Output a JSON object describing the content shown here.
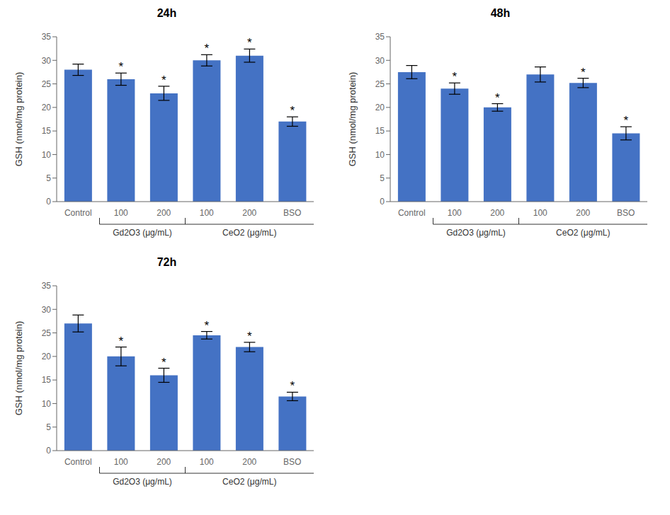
{
  "chart_data": [
    {
      "type": "bar",
      "title": "24h",
      "categories": [
        "Control",
        "100",
        "200",
        "100",
        "200",
        "BSO"
      ],
      "groups": [
        null,
        "Gd2O3 (μg/mL)",
        "Gd2O3 (μg/mL)",
        "CeO2 (μg/mL)",
        "CeO2 (μg/mL)",
        "CeO2 (μg/mL)"
      ],
      "values": [
        28.0,
        26.0,
        23.0,
        30.0,
        31.0,
        17.0
      ],
      "errors": [
        1.2,
        1.3,
        1.5,
        1.2,
        1.4,
        1.0
      ],
      "annotations": [
        null,
        "*",
        "*",
        "*",
        "*",
        "*"
      ],
      "ylabel": "GSH (nmol/mg protein)",
      "ylim": [
        0,
        35
      ],
      "yticks": [
        0,
        5,
        10,
        15,
        20,
        25,
        30,
        35
      ],
      "color": "#4472C4",
      "grid": false
    },
    {
      "type": "bar",
      "title": "48h",
      "categories": [
        "Control",
        "100",
        "200",
        "100",
        "200",
        "BSO"
      ],
      "groups": [
        null,
        "Gd2O3 (μg/mL)",
        "Gd2O3 (μg/mL)",
        "CeO2 (μg/mL)",
        "CeO2 (μg/mL)",
        "CeO2 (μg/mL)"
      ],
      "values": [
        27.5,
        24.0,
        20.0,
        27.0,
        25.2,
        14.5
      ],
      "errors": [
        1.4,
        1.2,
        0.8,
        1.6,
        1.0,
        1.4
      ],
      "annotations": [
        null,
        "*",
        "*",
        null,
        "*",
        "*"
      ],
      "ylabel": "GSH (nmol/mg protein)",
      "ylim": [
        0,
        35
      ],
      "yticks": [
        0,
        5,
        10,
        15,
        20,
        25,
        30,
        35
      ],
      "color": "#4472C4",
      "grid": false
    },
    {
      "type": "bar",
      "title": "72h",
      "categories": [
        "Control",
        "100",
        "200",
        "100",
        "200",
        "BSO"
      ],
      "groups": [
        null,
        "Gd2O3 (μg/mL)",
        "Gd2O3 (μg/mL)",
        "CeO2 (μg/mL)",
        "CeO2 (μg/mL)",
        "CeO2 (μg/mL)"
      ],
      "values": [
        27.0,
        20.0,
        16.0,
        24.5,
        22.0,
        11.5
      ],
      "errors": [
        1.8,
        2.0,
        1.5,
        0.8,
        1.0,
        0.9
      ],
      "annotations": [
        null,
        "*",
        "*",
        "*",
        "*",
        "*"
      ],
      "ylabel": "GSH (nmol/mg protein)",
      "ylim": [
        0,
        35
      ],
      "yticks": [
        0,
        5,
        10,
        15,
        20,
        25,
        30,
        35
      ],
      "color": "#4472C4",
      "grid": false
    }
  ]
}
